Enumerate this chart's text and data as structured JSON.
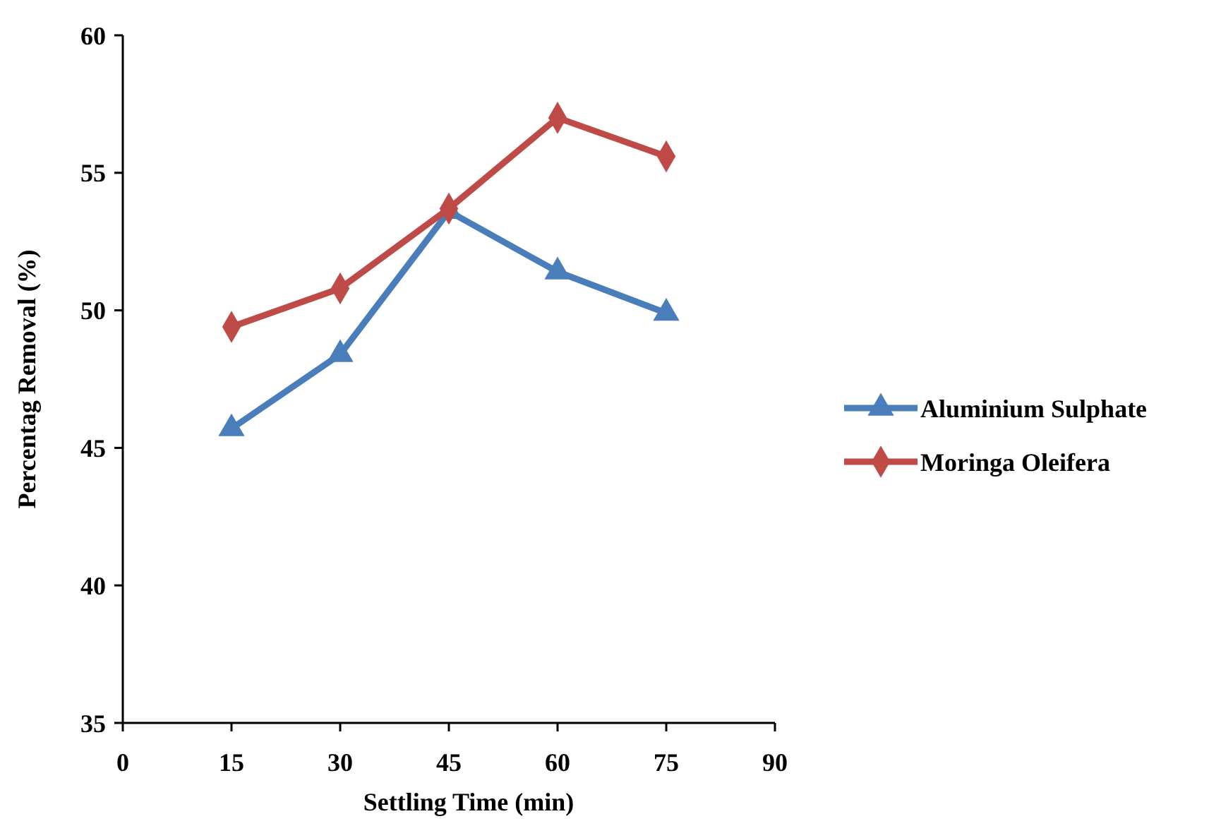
{
  "chart_data": {
    "type": "line",
    "xlabel": "Settling Time (min)",
    "ylabel": "Percentag Removal (%)",
    "x": [
      15,
      30,
      45,
      60,
      75
    ],
    "series": [
      {
        "name": "Aluminium Sulphate",
        "color": "#4a7ebb",
        "marker": "triangle",
        "values": [
          45.7,
          48.4,
          53.6,
          51.4,
          49.9
        ]
      },
      {
        "name": "Moringa Oleifera",
        "color": "#be4b48",
        "marker": "diamond",
        "values": [
          49.4,
          50.8,
          53.7,
          57.0,
          55.6
        ]
      }
    ],
    "xlim": [
      0,
      90
    ],
    "xticks": [
      0,
      15,
      30,
      45,
      60,
      75,
      90
    ],
    "ylim": [
      35,
      60
    ],
    "yticks": [
      35,
      40,
      45,
      50,
      55,
      60
    ],
    "grid": false,
    "legend": "right"
  }
}
